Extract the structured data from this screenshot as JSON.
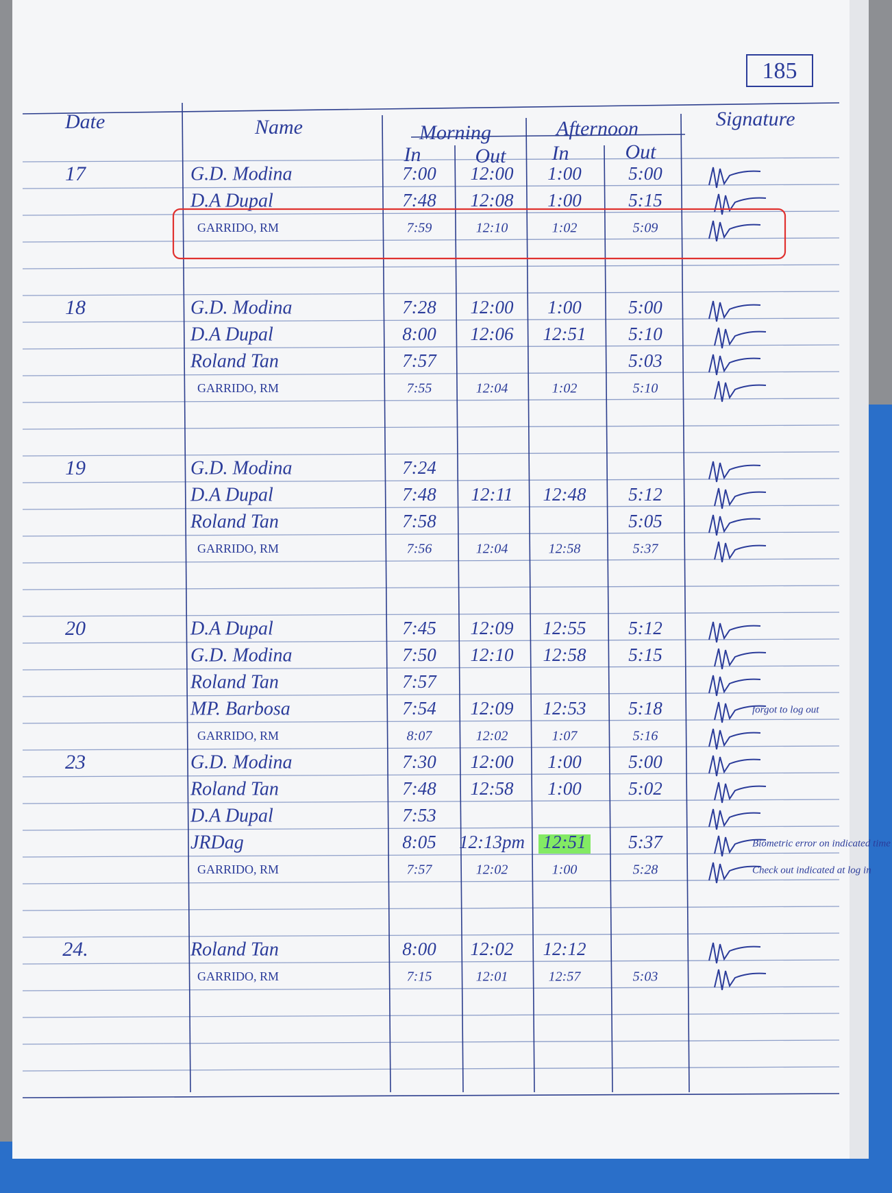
{
  "page_number": "185",
  "header": {
    "date": "Date",
    "name": "Name",
    "morning": "Morning",
    "afternoon": "Afternoon",
    "am_in": "In",
    "am_out": "Out",
    "pm_in": "In",
    "pm_out": "Out",
    "signature": "Signature"
  },
  "days": [
    {
      "date": "17",
      "entries": [
        {
          "name": "G.D. Modina",
          "am_in": "7:00",
          "am_out": "12:00",
          "pm_in": "1:00",
          "pm_out": "5:00"
        },
        {
          "name": "D.A Dupal",
          "am_in": "7:48",
          "am_out": "12:08",
          "pm_in": "1:00",
          "pm_out": "5:15"
        },
        {
          "name": "GARRIDO, RM",
          "am_in": "7:59",
          "am_out": "12:10",
          "pm_in": "1:02",
          "pm_out": "5:09"
        }
      ]
    },
    {
      "date": "18",
      "entries": [
        {
          "name": "G.D. Modina",
          "am_in": "7:28",
          "am_out": "12:00",
          "pm_in": "1:00",
          "pm_out": "5:00"
        },
        {
          "name": "D.A Dupal",
          "am_in": "8:00",
          "am_out": "12:06",
          "pm_in": "12:51",
          "pm_out": "5:10"
        },
        {
          "name": "Roland Tan",
          "am_in": "7:57",
          "pm_out": "5:03"
        },
        {
          "name": "GARRIDO, RM",
          "am_in": "7:55",
          "am_out": "12:04",
          "pm_in": "1:02",
          "pm_out": "5:10"
        }
      ]
    },
    {
      "date": "19",
      "entries": [
        {
          "name": "G.D. Modina",
          "am_in": "7:24"
        },
        {
          "name": "D.A Dupal",
          "am_in": "7:48",
          "am_out": "12:11",
          "pm_in": "12:48",
          "pm_out": "5:12"
        },
        {
          "name": "Roland Tan",
          "am_in": "7:58",
          "pm_out": "5:05"
        },
        {
          "name": "GARRIDO, RM",
          "am_in": "7:56",
          "am_out": "12:04",
          "pm_in": "12:58",
          "pm_out": "5:37"
        }
      ]
    },
    {
      "date": "20",
      "entries": [
        {
          "name": "D.A Dupal",
          "am_in": "7:45",
          "am_out": "12:09",
          "pm_in": "12:55",
          "pm_out": "5:12"
        },
        {
          "name": "G.D. Modina",
          "am_in": "7:50",
          "am_out": "12:10",
          "pm_in": "12:58",
          "pm_out": "5:15"
        },
        {
          "name": "Roland Tan",
          "am_in": "7:57"
        },
        {
          "name": "MP. Barbosa",
          "am_in": "7:54",
          "am_out": "12:09",
          "pm_in": "12:53",
          "pm_out": "5:18",
          "note": "forgot to log out"
        },
        {
          "name": "GARRIDO, RM",
          "am_in": "8:07",
          "am_out": "12:02",
          "pm_in": "1:07",
          "pm_out": "5:16"
        }
      ]
    },
    {
      "date": "23",
      "entries": [
        {
          "name": "G.D. Modina",
          "am_in": "7:30",
          "am_out": "12:00",
          "pm_in": "1:00",
          "pm_out": "5:00"
        },
        {
          "name": "Roland Tan",
          "am_in": "7:48",
          "am_out": "12:58",
          "pm_in": "1:00",
          "pm_out": "5:02"
        },
        {
          "name": "D.A Dupal",
          "am_in": "7:53"
        },
        {
          "name": "JRDag",
          "am_in": "8:05",
          "am_out": "12:13pm",
          "pm_in": "12:51",
          "pm_out": "5:37",
          "highlight": "pm_in",
          "note": "Biometric error on indicated time"
        },
        {
          "name": "GARRIDO, RM",
          "am_in": "7:57",
          "am_out": "12:02",
          "pm_in": "1:00",
          "pm_out": "5:28",
          "note": "Check out indicated at log in"
        }
      ]
    },
    {
      "date": "24.",
      "entries": [
        {
          "name": "Roland Tan",
          "am_in": "8:00",
          "am_out": "12:02",
          "pm_in": "12:12"
        },
        {
          "name": "GARRIDO, RM",
          "am_in": "7:15",
          "am_out": "12:01",
          "pm_in": "12:57",
          "pm_out": "5:03"
        }
      ]
    }
  ]
}
